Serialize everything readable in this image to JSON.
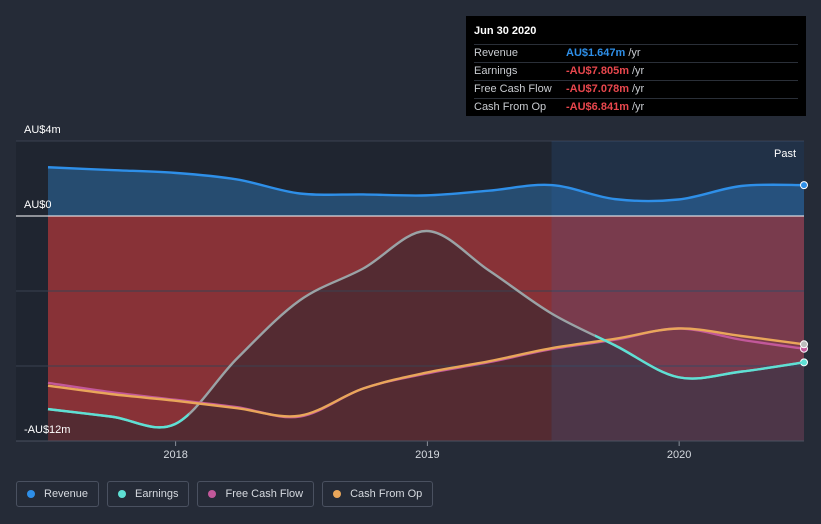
{
  "tooltip": {
    "date": "Jun 30 2020",
    "rows": [
      {
        "label": "Revenue",
        "value": "AU$1.647m",
        "unit": "/yr",
        "color": "#2e8fe8"
      },
      {
        "label": "Earnings",
        "value": "-AU$7.805m",
        "unit": "/yr",
        "color": "#e8474d"
      },
      {
        "label": "Free Cash Flow",
        "value": "-AU$7.078m",
        "unit": "/yr",
        "color": "#e8474d"
      },
      {
        "label": "Cash From Op",
        "value": "-AU$6.841m",
        "unit": "/yr",
        "color": "#e8474d"
      }
    ]
  },
  "legend": [
    {
      "label": "Revenue",
      "color": "#2e8fe8"
    },
    {
      "label": "Earnings",
      "color": "#5ee0d4"
    },
    {
      "label": "Free Cash Flow",
      "color": "#c2589a"
    },
    {
      "label": "Cash From Op",
      "color": "#e9a65a"
    }
  ],
  "chart_data": {
    "type": "line",
    "title": "",
    "xlabel": "",
    "ylabel": "",
    "y_unit": "AU$ m",
    "ylim": [
      -12,
      4
    ],
    "xlim": [
      "2017-06-30",
      "2020-06-30"
    ],
    "past_start": "2019-06-30",
    "past_label": "Past",
    "y_ticks": [
      {
        "value": 4,
        "label": "AU$4m"
      },
      {
        "value": 0,
        "label": "AU$0"
      },
      {
        "value": -12,
        "label": "-AU$12m"
      }
    ],
    "x_ticks": [
      {
        "value": "2018-01-01",
        "label": "2018"
      },
      {
        "value": "2019-01-01",
        "label": "2019"
      },
      {
        "value": "2020-01-01",
        "label": "2020"
      }
    ],
    "series": [
      {
        "name": "Revenue",
        "color": "#2e8fe8",
        "points": [
          [
            "2017-06-30",
            2.6
          ],
          [
            "2017-09-30",
            2.45
          ],
          [
            "2017-12-31",
            2.3
          ],
          [
            "2018-03-31",
            1.95
          ],
          [
            "2018-06-30",
            1.2
          ],
          [
            "2018-09-30",
            1.15
          ],
          [
            "2018-12-31",
            1.1
          ],
          [
            "2019-03-31",
            1.35
          ],
          [
            "2019-06-30",
            1.65
          ],
          [
            "2019-09-30",
            0.9
          ],
          [
            "2019-12-31",
            0.88
          ],
          [
            "2020-03-31",
            1.6
          ],
          [
            "2020-06-30",
            1.647
          ]
        ]
      },
      {
        "name": "Earnings",
        "color": "#5ee0d4",
        "points": [
          [
            "2017-06-30",
            -10.3
          ],
          [
            "2017-09-30",
            -10.7
          ],
          [
            "2017-12-31",
            -11.1
          ],
          [
            "2018-03-31",
            -7.6
          ],
          [
            "2018-06-30",
            -4.5
          ],
          [
            "2018-09-30",
            -2.8
          ],
          [
            "2018-12-31",
            -0.8
          ],
          [
            "2019-03-31",
            -2.9
          ],
          [
            "2019-06-30",
            -5.2
          ],
          [
            "2019-09-30",
            -6.9
          ],
          [
            "2019-12-31",
            -8.6
          ],
          [
            "2020-03-31",
            -8.3
          ],
          [
            "2020-06-30",
            -7.805
          ]
        ]
      },
      {
        "name": "Free Cash Flow",
        "color": "#c2589a",
        "points": [
          [
            "2017-06-30",
            -8.9
          ],
          [
            "2017-09-30",
            -9.4
          ],
          [
            "2017-12-31",
            -9.8
          ],
          [
            "2018-03-31",
            -10.2
          ],
          [
            "2018-06-30",
            -10.7
          ],
          [
            "2018-09-30",
            -9.2
          ],
          [
            "2018-12-31",
            -8.4
          ],
          [
            "2019-03-31",
            -7.8
          ],
          [
            "2019-06-30",
            -7.1
          ],
          [
            "2019-09-30",
            -6.6
          ],
          [
            "2019-12-31",
            -6.0
          ],
          [
            "2020-03-31",
            -6.6
          ],
          [
            "2020-06-30",
            -7.078
          ]
        ]
      },
      {
        "name": "Cash From Op",
        "color": "#e9a65a",
        "points": [
          [
            "2017-06-30",
            -9.05
          ],
          [
            "2017-09-30",
            -9.5
          ],
          [
            "2017-12-31",
            -9.85
          ],
          [
            "2018-03-31",
            -10.25
          ],
          [
            "2018-06-30",
            -10.65
          ],
          [
            "2018-09-30",
            -9.2
          ],
          [
            "2018-12-31",
            -8.35
          ],
          [
            "2019-03-31",
            -7.75
          ],
          [
            "2019-06-30",
            -7.05
          ],
          [
            "2019-09-30",
            -6.55
          ],
          [
            "2019-12-31",
            -6.0
          ],
          [
            "2020-03-31",
            -6.4
          ],
          [
            "2020-06-30",
            -6.841
          ]
        ]
      }
    ],
    "grid": true,
    "legend_position": "bottom-left"
  }
}
